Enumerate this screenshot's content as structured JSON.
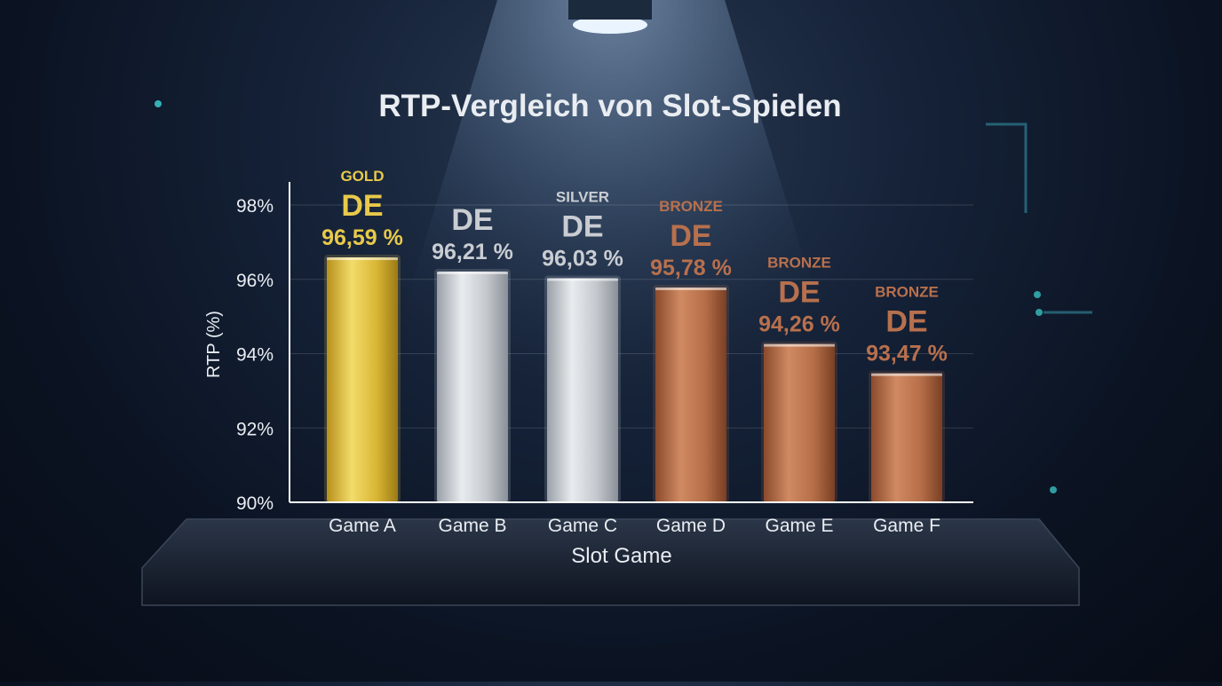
{
  "chart_data": {
    "type": "bar",
    "title": "RTP-Vergleich von Slot-Spielen",
    "xlabel": "Slot Game",
    "ylabel": "RTP (%)",
    "ylim": [
      90,
      98.5
    ],
    "yticks": [
      90,
      92,
      94,
      96,
      98
    ],
    "ytick_labels": [
      "90%",
      "92%",
      "94%",
      "96%",
      "98%"
    ],
    "grid": true,
    "categories": [
      "Game A",
      "Game B",
      "Game C",
      "Game D",
      "Game E",
      "Game F"
    ],
    "values": [
      96.59,
      96.21,
      96.03,
      95.78,
      94.26,
      93.47
    ],
    "value_labels": [
      "96,59 %",
      "96,21 %",
      "96,03 %",
      "95,78 %",
      "94,26 %",
      "93,47 %"
    ],
    "badges": [
      "DE",
      "DE",
      "DE",
      "DE",
      "DE",
      "DE"
    ],
    "medals": [
      "GOLD",
      "",
      "SILVER",
      "BRONZE",
      "BRONZE",
      "BRONZE"
    ],
    "colors": {
      "gold": "#e8c94a",
      "silver": "#c9cdd2",
      "bronze": "#b8704d",
      "axis": "#ffffff",
      "text": "#e9edf2"
    },
    "bar_styles": [
      "gold",
      "silver",
      "silver",
      "bronze",
      "bronze",
      "bronze"
    ]
  }
}
